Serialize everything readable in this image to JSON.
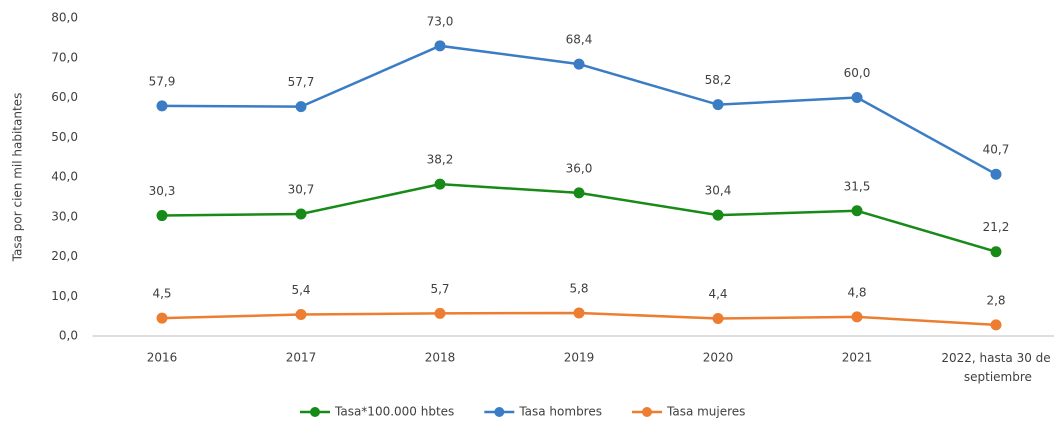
{
  "chart_data": {
    "type": "line",
    "y_axis_label": "Tasa por cien mil habitantes",
    "categories": [
      "2016",
      "2017",
      "2018",
      "2019",
      "2020",
      "2021",
      "2022, hasta 30 de septiembre"
    ],
    "series": [
      {
        "name": "Tasa*100.000 hbtes",
        "color": "#188a18",
        "values": [
          30.3,
          30.7,
          38.2,
          36.0,
          30.4,
          31.5,
          21.2
        ],
        "value_labels": [
          "30,3",
          "30,7",
          "38,2",
          "36,0",
          "30,4",
          "31,5",
          "21,2"
        ]
      },
      {
        "name": "Tasa hombres",
        "color": "#3b7dc4",
        "values": [
          57.9,
          57.7,
          73.0,
          68.4,
          58.2,
          60.0,
          40.7
        ],
        "value_labels": [
          "57,9",
          "57,7",
          "73,0",
          "68,4",
          "58,2",
          "60,0",
          "40,7"
        ]
      },
      {
        "name": "Tasa mujeres",
        "color": "#ed7d31",
        "values": [
          4.5,
          5.4,
          5.7,
          5.8,
          4.4,
          4.8,
          2.8
        ],
        "value_labels": [
          "4,5",
          "5,4",
          "5,7",
          "5,8",
          "4,4",
          "4,8",
          "2,8"
        ]
      }
    ],
    "ylim": [
      0,
      80
    ],
    "yticks": [
      {
        "value": 0,
        "label": "0,0"
      },
      {
        "value": 10,
        "label": "10,0"
      },
      {
        "value": 20,
        "label": "20,0"
      },
      {
        "value": 30,
        "label": "30,0"
      },
      {
        "value": 40,
        "label": "40,0"
      },
      {
        "value": 50,
        "label": "50,0"
      },
      {
        "value": 60,
        "label": "60,0"
      },
      {
        "value": 70,
        "label": "70,0"
      },
      {
        "value": 80,
        "label": "80,0"
      }
    ],
    "grid": false,
    "legend": "bottom"
  }
}
